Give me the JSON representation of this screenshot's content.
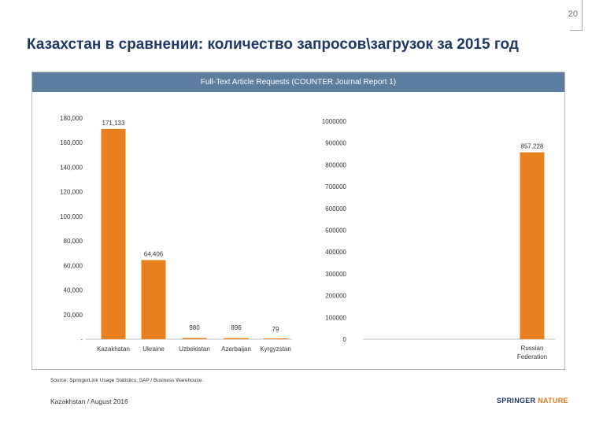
{
  "slide": {
    "number": "20"
  },
  "title": "Казахстан в сравнении: количество запросов\\загрузок за 2015 год",
  "chart_header": "Full-Text Article Requests (COUNTER Journal Report 1)",
  "colors": {
    "bar": "#e8801e",
    "header": "#5b7da0",
    "title": "#1f3864"
  },
  "chart_data": [
    {
      "type": "bar",
      "title": "Full-Text Article Requests (COUNTER Journal Report 1)",
      "categories": [
        "Kazakhstan",
        "Ukraine",
        "Uzbekistan",
        "Azerbaijan",
        "Kyrgyzstan"
      ],
      "values": [
        171133,
        64406,
        980,
        896,
        79
      ],
      "data_labels": [
        "171,133",
        "64,406",
        "980",
        "896",
        "79"
      ],
      "ylim": [
        0,
        180000
      ],
      "yticks": [
        0,
        20000,
        40000,
        60000,
        80000,
        100000,
        120000,
        140000,
        160000,
        180000
      ],
      "ytick_labels": [
        "-",
        "20,000",
        "40,000",
        "60,000",
        "80,000",
        "100,000",
        "120,000",
        "140,000",
        "160,000",
        "180,000"
      ]
    },
    {
      "type": "bar",
      "title": "Full-Text Article Requests (COUNTER Journal Report 1)",
      "categories": [
        "Russian Federation"
      ],
      "category_lines": [
        [
          "Russian",
          "Federation"
        ]
      ],
      "values": [
        857228
      ],
      "data_labels": [
        "857,228"
      ],
      "ylim": [
        0,
        1000000
      ],
      "yticks": [
        0,
        100000,
        200000,
        300000,
        400000,
        500000,
        600000,
        700000,
        800000,
        900000,
        1000000
      ],
      "ytick_labels": [
        "0",
        "100000",
        "200000",
        "300000",
        "400000",
        "500000",
        "600000",
        "700000",
        "800000",
        "900000",
        "1000000"
      ]
    }
  ],
  "source": "Source: SpringerLink Usage Statistics, SAP / Business Warehouse.",
  "footer": "Kazakhstan / August 2016",
  "logo": {
    "part1": "SPRINGER",
    "part2": "NATURE"
  }
}
